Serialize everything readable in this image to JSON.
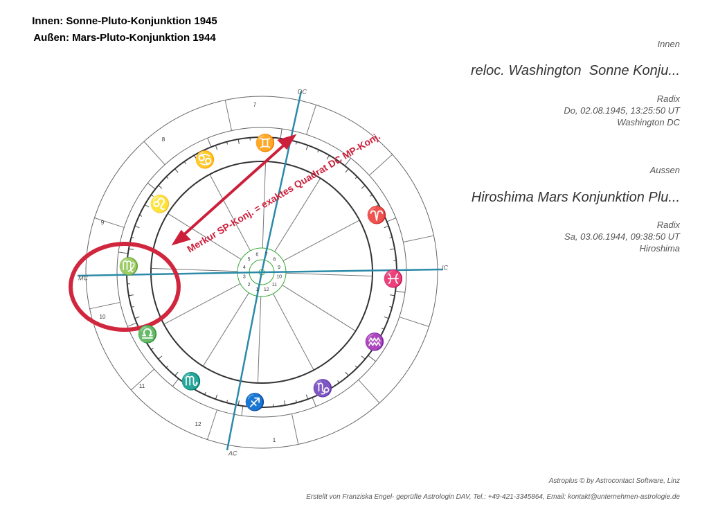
{
  "header": {
    "line1": "Innen: Sonne-Pluto-Konjunktion 1945",
    "line2": "Außen: Mars-Pluto-Konjunktion 1944"
  },
  "inner": {
    "label": "Innen",
    "name": "reloc. Washington  Sonne Konju...",
    "kind": "Radix",
    "date": "Do, 02.08.1945, 13:25:50 UT",
    "place": "Washington DC"
  },
  "outer": {
    "label": "Aussen",
    "name": "Hiroshima Mars Konjunktion Plu...",
    "kind": "Radix",
    "date": "Sa, 03.06.1944, 09:38:50 UT",
    "place": "Hiroshima"
  },
  "axes": {
    "ac": "AC",
    "dc": "DC",
    "mc": "MC",
    "ic": "IC"
  },
  "annotation": "Merkur SP-Konj. = exaktes Quadrat DC MP-Konj.",
  "signs": [
    "♊",
    "♋",
    "♌",
    "♍",
    "♎",
    "♏",
    "♐",
    "♑",
    "♒",
    "♓",
    "♈"
  ],
  "houses": [
    "7",
    "8",
    "9",
    "10",
    "11",
    "12",
    "1"
  ],
  "inner_houses": [
    "1",
    "2",
    "3",
    "4",
    "5",
    "6",
    "7",
    "8",
    "9",
    "10",
    "11",
    "12"
  ],
  "footer": {
    "line1": "Astroplus © by Astrocontact Software, Linz",
    "line2": "Erstellt von Franziska Engel- geprüfte Astrologin DAV, Tel.: +49-421-3345864, Email: kontakt@unternehmen-astrologie.de"
  }
}
